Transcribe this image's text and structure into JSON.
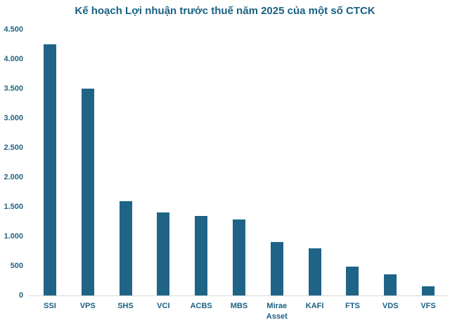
{
  "chart_data": {
    "type": "bar",
    "title": "Kế hoạch Lợi nhuận trước thuế năm 2025 của một số CTCK",
    "categories": [
      "SSI",
      "VPS",
      "SHS",
      "VCI",
      "ACBS",
      "MBS",
      "Mirae Asset",
      "KAFI",
      "FTS",
      "VDS",
      "VFS"
    ],
    "values": [
      4250,
      3500,
      1590,
      1410,
      1345,
      1290,
      900,
      795,
      490,
      355,
      160
    ],
    "xlabel": "",
    "ylabel": "",
    "ylim": [
      0,
      4500
    ],
    "ytick_values": [
      0,
      500,
      1000,
      1500,
      2000,
      2500,
      3000,
      3500,
      4000,
      4500
    ],
    "ytick_labels": [
      "0",
      "500",
      "1.000",
      "1.500",
      "2.000",
      "2.500",
      "3.000",
      "3.500",
      "4.000",
      "4.500"
    ],
    "grid": false,
    "legend": false,
    "colors": {
      "bar_fill": "#1F6486",
      "title_text": "#1A6183",
      "tick_text": "#1F6484",
      "axis_line": "#D9D9D9",
      "background": "#FFFFFF"
    }
  }
}
